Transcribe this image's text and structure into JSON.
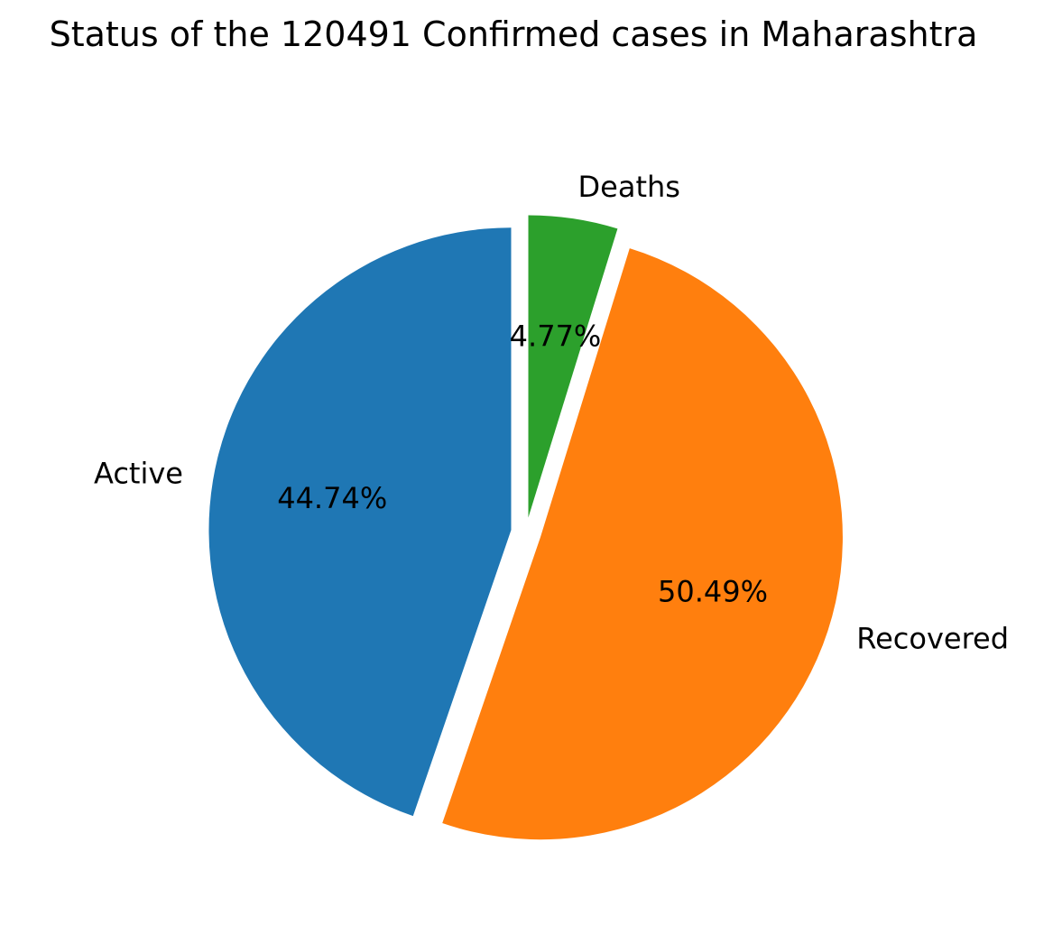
{
  "chart_data": {
    "type": "pie",
    "title": "Status of the 120491 Confirmed cases in Maharashtra",
    "slices": [
      {
        "label": "Active",
        "value": 44.74,
        "pct_label": "44.74%",
        "color": "#1f77b4"
      },
      {
        "label": "Recovered",
        "value": 50.49,
        "pct_label": "50.49%",
        "color": "#ff7f0e"
      },
      {
        "label": "Deaths",
        "value": 4.77,
        "pct_label": "4.77%",
        "color": "#2ca02c"
      }
    ],
    "start_angle_deg": 90,
    "direction": "counterclockwise",
    "exploded": true
  }
}
